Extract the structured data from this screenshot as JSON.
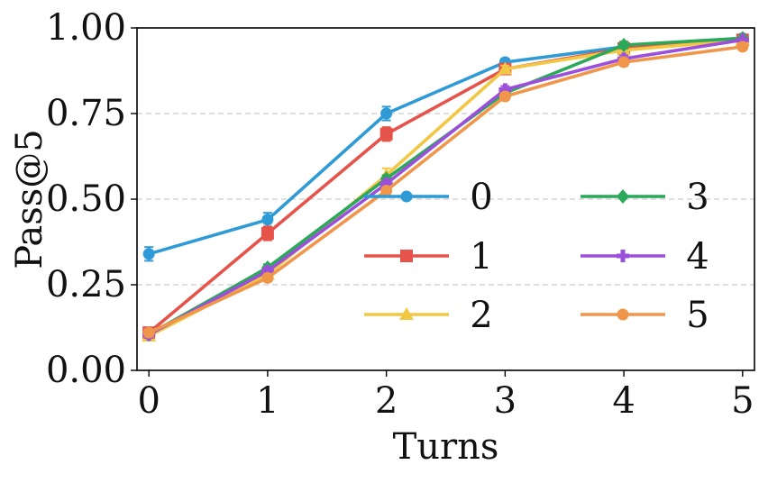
{
  "chart_data": {
    "type": "line",
    "xlabel": "Turns",
    "ylabel": "Pass@5",
    "x": [
      0,
      1,
      2,
      3,
      4,
      5
    ],
    "xlim": [
      -0.1,
      5.1
    ],
    "ylim": [
      0,
      1
    ],
    "xticks": [
      "0",
      "1",
      "2",
      "3",
      "4",
      "5"
    ],
    "yticks": [
      "0.00",
      "0.25",
      "0.50",
      "0.75",
      "1.00"
    ],
    "ytick_values": [
      0,
      0.25,
      0.5,
      0.75,
      1.0
    ],
    "grid": "horizontal dashed",
    "legend_position": "lower-right",
    "series": [
      {
        "name": "0",
        "color": "#2E9AD6",
        "marker": "circle",
        "values": [
          0.34,
          0.44,
          0.75,
          0.9,
          0.945,
          0.97
        ],
        "err": [
          0.02,
          0.02,
          0.02,
          0.01,
          0.01,
          0.005
        ]
      },
      {
        "name": "1",
        "color": "#E5534B",
        "marker": "square",
        "values": [
          0.11,
          0.4,
          0.69,
          0.88,
          0.94,
          0.965
        ],
        "err": [
          0.01,
          0.02,
          0.02,
          0.01,
          0.01,
          0.005
        ]
      },
      {
        "name": "2",
        "color": "#F2C744",
        "marker": "triangle",
        "values": [
          0.1,
          0.28,
          0.57,
          0.88,
          0.935,
          0.965
        ],
        "err": [
          0.01,
          0.02,
          0.02,
          0.01,
          0.01,
          0.005
        ]
      },
      {
        "name": "3",
        "color": "#2CA85A",
        "marker": "diamond",
        "values": [
          0.105,
          0.3,
          0.56,
          0.81,
          0.95,
          0.97
        ],
        "err": [
          0.01,
          0.01,
          0.01,
          0.01,
          0.01,
          0.005
        ]
      },
      {
        "name": "4",
        "color": "#9B4FDB",
        "marker": "plus",
        "values": [
          0.105,
          0.29,
          0.545,
          0.82,
          0.91,
          0.965
        ],
        "err": [
          0.01,
          0.01,
          0.01,
          0.01,
          0.01,
          0.005
        ]
      },
      {
        "name": "5",
        "color": "#F0964A",
        "marker": "circle",
        "values": [
          0.11,
          0.27,
          0.525,
          0.8,
          0.9,
          0.945
        ],
        "err": [
          0.01,
          0.01,
          0.01,
          0.01,
          0.01,
          0.005
        ]
      }
    ]
  }
}
